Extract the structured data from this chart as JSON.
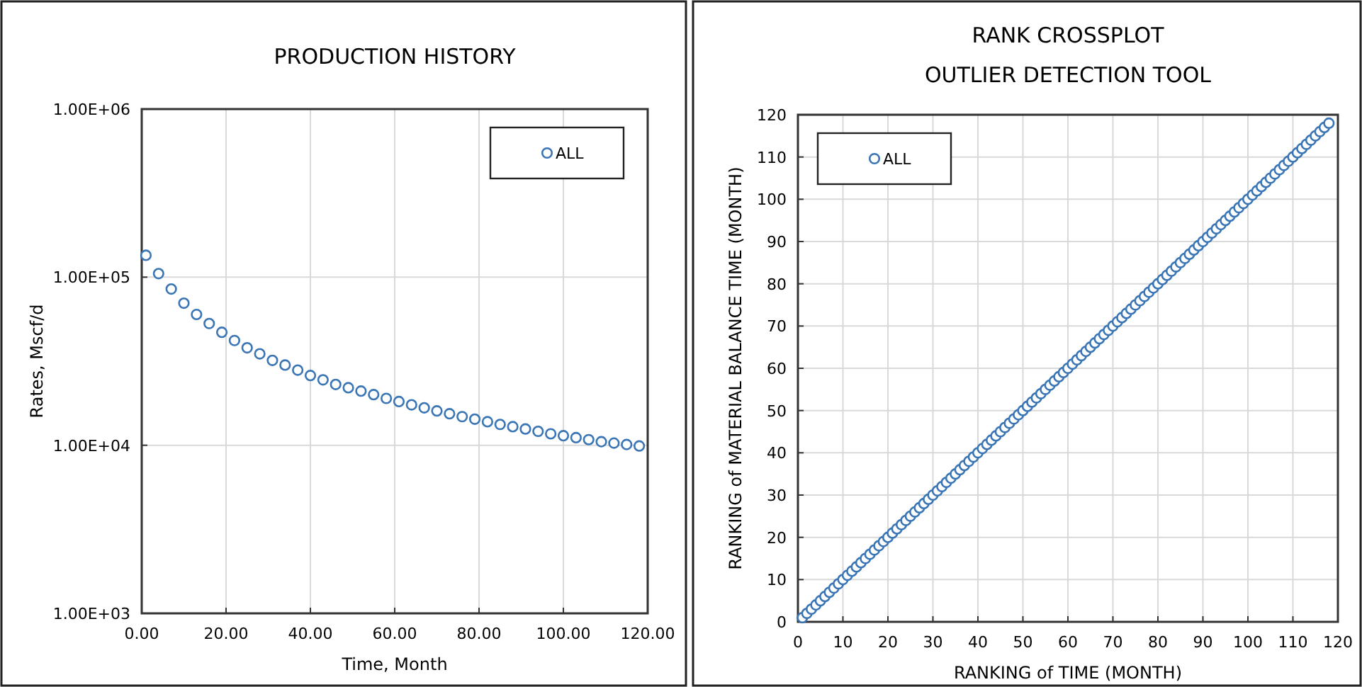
{
  "chart_data": [
    {
      "type": "scatter",
      "title": "PRODUCTION HISTORY",
      "xlabel": "Time, Month",
      "ylabel": "Rates, Mscf/d",
      "log": "y",
      "grid": true,
      "legend": "top right",
      "marker": "circle",
      "xlim": [
        0,
        120
      ],
      "xticks": [
        {
          "value": 0,
          "label": "0.00"
        },
        {
          "value": 20,
          "label": "20.00"
        },
        {
          "value": 40,
          "label": "40.00"
        },
        {
          "value": 60,
          "label": "60.00"
        },
        {
          "value": 80,
          "label": "80.00"
        },
        {
          "value": 100,
          "label": "100.00"
        },
        {
          "value": 120,
          "label": "120.00"
        }
      ],
      "ylim": [
        1000,
        1000000
      ],
      "yticks": [
        {
          "value": 1000,
          "label": "1.00E+03"
        },
        {
          "value": 10000,
          "label": "1.00E+04"
        },
        {
          "value": 100000,
          "label": "1.00E+05"
        },
        {
          "value": 1000000,
          "label": "1.00E+06"
        }
      ],
      "series": [
        {
          "name": "ALL",
          "color": "#3a75b5",
          "x": [
            1,
            4,
            7,
            10,
            13,
            16,
            19,
            22,
            25,
            28,
            31,
            34,
            37,
            40,
            43,
            46,
            49,
            52,
            55,
            58,
            61,
            64,
            67,
            70,
            73,
            76,
            79,
            82,
            85,
            88,
            91,
            94,
            97,
            100,
            103,
            106,
            109,
            112,
            115,
            118
          ],
          "values": [
            135000,
            105000,
            85000,
            70000,
            60000,
            53000,
            47000,
            42000,
            38000,
            35000,
            32000,
            30000,
            28000,
            26000,
            24500,
            23000,
            22000,
            21000,
            20000,
            19000,
            18200,
            17400,
            16700,
            16000,
            15400,
            14800,
            14300,
            13800,
            13300,
            12900,
            12500,
            12100,
            11700,
            11400,
            11100,
            10800,
            10500,
            10300,
            10100,
            9900
          ]
        }
      ]
    },
    {
      "type": "scatter",
      "title": "RANK CROSSPLOT",
      "subtitle": "OUTLIER DETECTION TOOL",
      "xlabel": "RANKING of TIME (MONTH)",
      "ylabel": "RANKING of MATERIAL BALANCE TIME (MONTH)",
      "grid": true,
      "legend": "top left",
      "marker": "circle",
      "xlim": [
        0,
        120
      ],
      "xticks": [
        0,
        10,
        20,
        30,
        40,
        50,
        60,
        70,
        80,
        90,
        100,
        110,
        120
      ],
      "ylim": [
        0,
        120
      ],
      "yticks": [
        0,
        10,
        20,
        30,
        40,
        50,
        60,
        70,
        80,
        90,
        100,
        110,
        120
      ],
      "series": [
        {
          "name": "ALL",
          "color": "#3a75b5",
          "x": [
            1,
            2,
            3,
            4,
            5,
            6,
            7,
            8,
            9,
            10,
            11,
            12,
            13,
            14,
            15,
            16,
            17,
            18,
            19,
            20,
            21,
            22,
            23,
            24,
            25,
            26,
            27,
            28,
            29,
            30,
            31,
            32,
            33,
            34,
            35,
            36,
            37,
            38,
            39,
            40,
            41,
            42,
            43,
            44,
            45,
            46,
            47,
            48,
            49,
            50,
            51,
            52,
            53,
            54,
            55,
            56,
            57,
            58,
            59,
            60,
            61,
            62,
            63,
            64,
            65,
            66,
            67,
            68,
            69,
            70,
            71,
            72,
            73,
            74,
            75,
            76,
            77,
            78,
            79,
            80,
            81,
            82,
            83,
            84,
            85,
            86,
            87,
            88,
            89,
            90,
            91,
            92,
            93,
            94,
            95,
            96,
            97,
            98,
            99,
            100,
            101,
            102,
            103,
            104,
            105,
            106,
            107,
            108,
            109,
            110,
            111,
            112,
            113,
            114,
            115,
            116,
            117,
            118
          ],
          "values": [
            1,
            2,
            3,
            4,
            5,
            6,
            7,
            8,
            9,
            10,
            11,
            12,
            13,
            14,
            15,
            16,
            17,
            18,
            19,
            20,
            21,
            22,
            23,
            24,
            25,
            26,
            27,
            28,
            29,
            30,
            31,
            32,
            33,
            34,
            35,
            36,
            37,
            38,
            39,
            40,
            41,
            42,
            43,
            44,
            45,
            46,
            47,
            48,
            49,
            50,
            51,
            52,
            53,
            54,
            55,
            56,
            57,
            58,
            59,
            60,
            61,
            62,
            63,
            64,
            65,
            66,
            67,
            68,
            69,
            70,
            71,
            72,
            73,
            74,
            75,
            76,
            77,
            78,
            79,
            80,
            81,
            82,
            83,
            84,
            85,
            86,
            87,
            88,
            89,
            90,
            91,
            92,
            93,
            94,
            95,
            96,
            97,
            98,
            99,
            100,
            101,
            102,
            103,
            104,
            105,
            106,
            107,
            108,
            109,
            110,
            111,
            112,
            113,
            114,
            115,
            116,
            117,
            118
          ]
        }
      ]
    }
  ]
}
